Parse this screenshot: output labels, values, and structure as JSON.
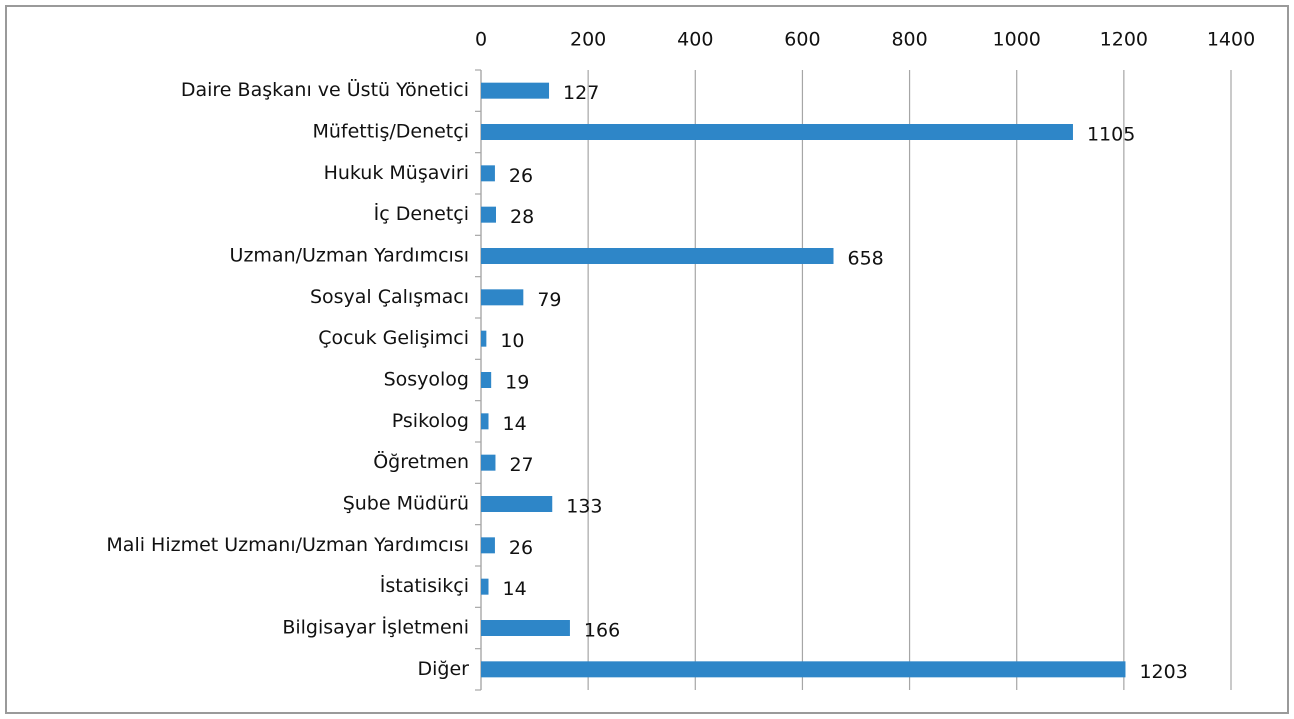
{
  "chart_data": {
    "type": "bar",
    "orientation": "horizontal",
    "categories": [
      "Daire Başkanı ve Üstü Yönetici",
      "Müfettiş/Denetçi",
      "Hukuk Müşaviri",
      "İç Denetçi",
      "Uzman/Uzman Yardımcısı",
      "Sosyal Çalışmacı",
      "Çocuk Gelişimci",
      "Sosyolog",
      "Psikolog",
      "Öğretmen",
      "Şube Müdürü",
      "Mali Hizmet Uzmanı/Uzman Yardımcısı",
      "İstatisikçi",
      "Bilgisayar İşletmeni",
      "Diğer"
    ],
    "values": [
      127,
      1105,
      26,
      28,
      658,
      79,
      10,
      19,
      14,
      27,
      133,
      26,
      14,
      166,
      1203
    ],
    "color": "#2e86c8",
    "xlim": [
      0,
      1400
    ],
    "xticks": [
      0,
      200,
      400,
      600,
      800,
      1000,
      1200,
      1400
    ],
    "grid": true
  }
}
